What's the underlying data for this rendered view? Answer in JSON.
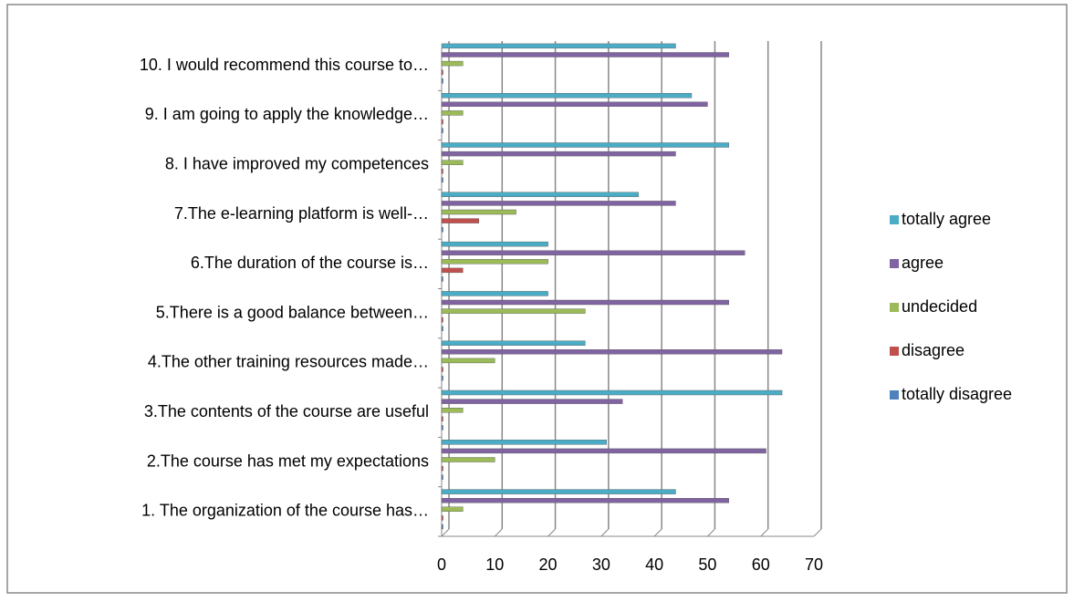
{
  "chart_data": {
    "type": "bar",
    "orientation": "horizontal",
    "categories": [
      "1. The  organization of the course has…",
      "2.The course  has met my expectations",
      "3.The contents of the course are useful",
      "4.The other training resources made…",
      "5.There is a good balance between…",
      "6.The duration of the course is…",
      "7.The e-learning platform is well-…",
      "8. I have improved my competences",
      "9. I am going to apply the knowledge…",
      "10. I would recommend this course to…"
    ],
    "series": [
      {
        "name": "totally disagree",
        "color": "#4f81bd",
        "values": [
          0,
          0,
          0,
          0,
          0,
          0,
          0,
          0,
          0,
          0
        ]
      },
      {
        "name": "disagree",
        "color": "#c0504d",
        "values": [
          0,
          0,
          0,
          0,
          0,
          4,
          7,
          0,
          0,
          0
        ]
      },
      {
        "name": "undecided",
        "color": "#9bbb59",
        "values": [
          4,
          10,
          4,
          10,
          27,
          20,
          14,
          4,
          4,
          4
        ]
      },
      {
        "name": "agree",
        "color": "#8064a2",
        "values": [
          54,
          61,
          34,
          64,
          54,
          57,
          44,
          44,
          50,
          54
        ]
      },
      {
        "name": "totally agree",
        "color": "#4bacc6",
        "values": [
          44,
          31,
          64,
          27,
          20,
          20,
          37,
          54,
          47,
          44
        ]
      }
    ],
    "xlim": [
      0,
      70
    ],
    "xticks": [
      0,
      10,
      20,
      30,
      40,
      50,
      60,
      70
    ],
    "grid": true,
    "legend": "right"
  }
}
